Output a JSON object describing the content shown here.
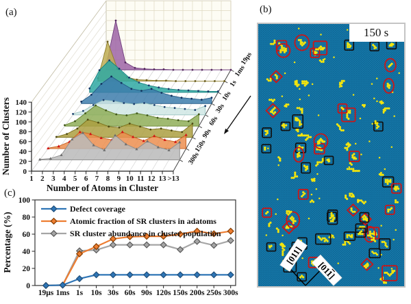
{
  "panels": {
    "a": {
      "label": "(a)"
    },
    "b": {
      "label": "(b)",
      "time_badge": "150 s",
      "direction_labels": [
        {
          "text": "[011]",
          "overbar_last": false
        },
        {
          "text": "[011]",
          "overbar_last": true
        }
      ],
      "colors": {
        "background": "#1579aa",
        "lattice_dot": "#0d608e",
        "adatom": "#f2e40e",
        "box_annotation": "#101010",
        "red_annotation": "#ce1515",
        "frame": "#c4c4c4",
        "badge_background": "#ffffff"
      },
      "counts": {
        "clusters": 100,
        "single_adatoms": 70,
        "black_boxes": 21,
        "red_squares": 14,
        "red_diamonds": 9,
        "red_ellipses": 9
      }
    },
    "c": {
      "label": "(c)"
    }
  },
  "chart_data": [
    {
      "type": "area",
      "subtype": "3d_waterfall",
      "panel": "a",
      "xlabel": "Number of Atoms in Cluster",
      "ylabel": "Number of Clusters",
      "categories": [
        "1",
        "2",
        "3",
        "4",
        "5",
        "6",
        "7",
        "8",
        "9",
        "10",
        "11",
        "12",
        "13",
        ">13"
      ],
      "yticks": [
        0,
        20,
        40,
        60,
        80,
        100,
        120,
        140
      ],
      "ylim": [
        0,
        140
      ],
      "depth_labels_back_to_front": [
        "19μs",
        "1ms",
        "1s",
        "10s",
        "30s",
        "60s",
        "90s",
        "150s",
        "300s"
      ],
      "series": [
        {
          "name": "19μs",
          "fill": "#9d64a6",
          "edge": "#6f3e7c",
          "marker_color": "#54275f",
          "marker": "dot",
          "values": [
            10,
            100,
            15,
            4,
            2,
            1,
            1,
            0,
            0,
            0,
            0,
            0,
            0,
            0
          ]
        },
        {
          "name": "1ms",
          "fill": "#bfae55",
          "edge": "#8e7d2b",
          "marker_color": "#6b5d1c",
          "marker": "dot",
          "values": [
            6,
            80,
            25,
            8,
            3,
            2,
            1,
            1,
            0,
            0,
            0,
            0,
            0,
            0
          ]
        },
        {
          "name": "1s",
          "fill": "#2ea8a2",
          "edge": "#157f7c",
          "marker_color": "#19386b",
          "marker": "dot",
          "values": [
            8,
            45,
            65,
            48,
            30,
            20,
            14,
            10,
            7,
            5,
            4,
            3,
            2,
            2
          ]
        },
        {
          "name": "10s",
          "fill": "#3d7cab",
          "edge": "#245a85",
          "marker_color": "#122f5c",
          "marker": "dot",
          "values": [
            4,
            18,
            40,
            55,
            42,
            30,
            26,
            30,
            22,
            16,
            12,
            10,
            8,
            12
          ]
        },
        {
          "name": "30s",
          "fill": "#cfe6e4",
          "edge": "#99c4c1",
          "marker_color": "#1c3f6e",
          "marker": "dot",
          "values": [
            2,
            8,
            20,
            30,
            28,
            24,
            22,
            24,
            20,
            16,
            14,
            12,
            10,
            18
          ]
        },
        {
          "name": "60s",
          "fill": "#8fae58",
          "edge": "#66842f",
          "marker_color": "#41571a",
          "marker": "dot",
          "values": [
            2,
            10,
            26,
            42,
            32,
            24,
            22,
            26,
            22,
            17,
            15,
            12,
            10,
            24
          ]
        },
        {
          "name": "90s",
          "fill": "#ac9f41",
          "edge": "#7c711c",
          "marker_color": "#4f4a12",
          "marker": "dot",
          "values": [
            1,
            7,
            18,
            36,
            30,
            22,
            20,
            28,
            22,
            16,
            18,
            14,
            11,
            28
          ]
        },
        {
          "name": "150s",
          "fill": "#ec8e4f",
          "edge": "#c55f1d",
          "marker_color": "#d21414",
          "marker": "triangle",
          "values": [
            1,
            5,
            14,
            34,
            30,
            22,
            18,
            34,
            24,
            16,
            26,
            18,
            14,
            28
          ]
        },
        {
          "name": "300s",
          "fill": "#bababa",
          "edge": "#8c8c8c",
          "marker_color": "#6e6e6e",
          "marker": "triangle",
          "values": [
            1,
            3,
            10,
            42,
            55,
            30,
            20,
            50,
            32,
            22,
            38,
            26,
            20,
            36
          ]
        }
      ]
    },
    {
      "type": "line",
      "panel": "c",
      "ylabel": "Percentage (%)",
      "categories": [
        "19μs",
        "1ms",
        "1s",
        "10s",
        "30s",
        "60s",
        "90s",
        "120s",
        "150s",
        "200s",
        "250s",
        "300s"
      ],
      "yticks": [
        0,
        20,
        40,
        60,
        80,
        100
      ],
      "ylim": [
        0,
        100
      ],
      "legend_position": "inside-top-left",
      "series": [
        {
          "name": "Defect coverage",
          "color": "#2e75b6",
          "edge": "#1f4e79",
          "values": [
            0,
            0.5,
            8,
            12.5,
            12.5,
            12.5,
            12.5,
            12.5,
            12.5,
            12.5,
            12.5,
            12.5
          ]
        },
        {
          "name": "Atomic fraction of SR clusters in adatoms",
          "color": "#ed7d31",
          "edge": "#833c00",
          "values": [
            0,
            0.5,
            37,
            45.5,
            54.5,
            57,
            57.5,
            57.5,
            60,
            63.5,
            60.5,
            63.5
          ]
        },
        {
          "name": "SR cluster abundance in cluster population",
          "color": "#a5a5a5",
          "edge": "#595959",
          "values": [
            0,
            0.5,
            40.5,
            41.5,
            47.5,
            47.5,
            47.5,
            47.5,
            42,
            51.5,
            47,
            52.5
          ]
        }
      ]
    }
  ]
}
